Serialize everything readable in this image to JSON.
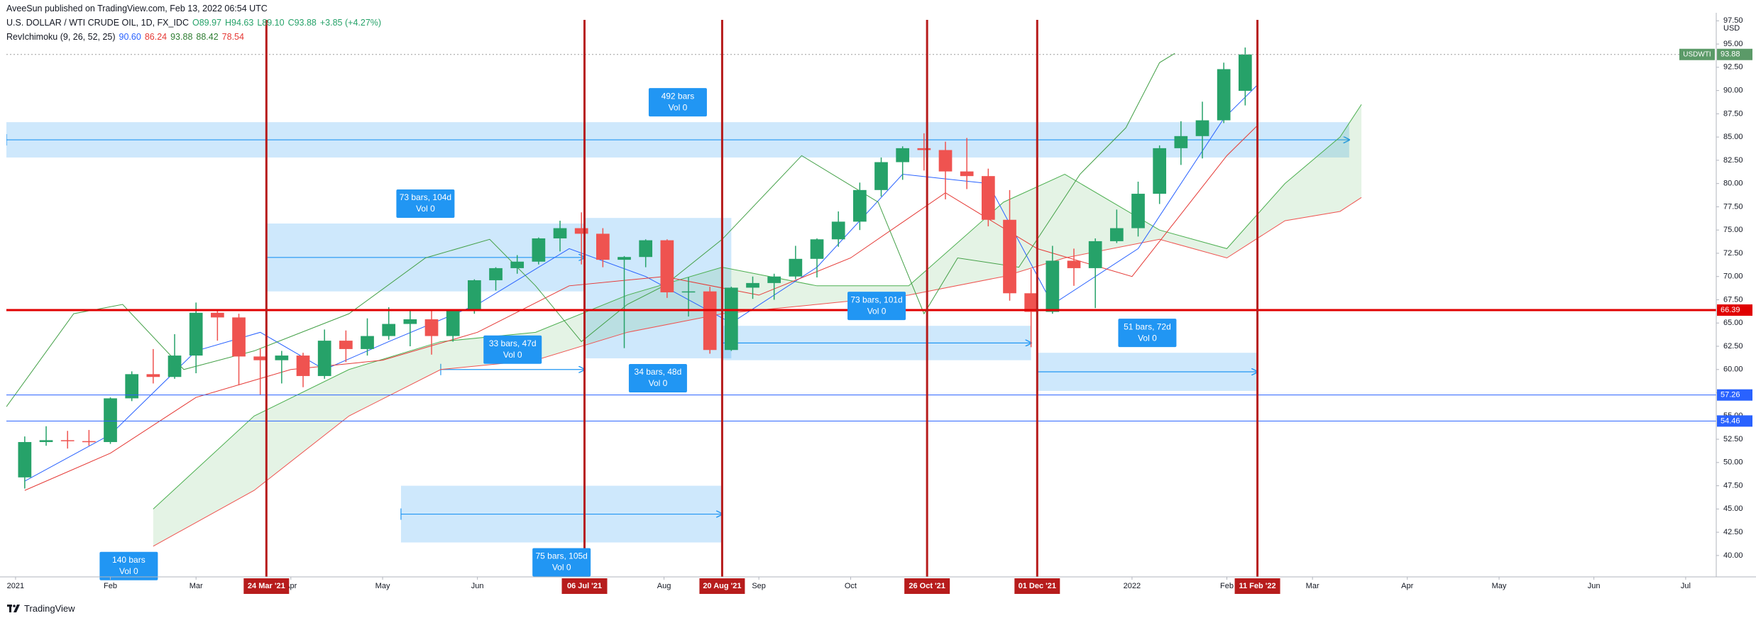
{
  "header": {
    "publisher": "AveeSun published on TradingView.com, Feb 13, 2022 06:54 UTC",
    "symbol": "U.S. DOLLAR / WTI CRUDE OIL, 1D, FX_IDC",
    "ohlc": [
      "O89.97",
      "H94.63",
      "L89.10",
      "C93.88",
      "+3.85 (+4.27%)"
    ],
    "indicator": "RevIchimoku (9, 26, 52, 25)",
    "indicator_values": [
      {
        "label": "90.60",
        "color": "#2962ff"
      },
      {
        "label": "86.24",
        "color": "#e53935"
      },
      {
        "label": "93.88",
        "color": "#2e7d32"
      },
      {
        "label": "88.42",
        "color": "#2e7d32"
      },
      {
        "label": "78.54",
        "color": "#e53935"
      }
    ]
  },
  "footer": {
    "brand": "TradingView"
  },
  "chart_data": {
    "type": "candlestick",
    "currency": "USD",
    "up_color": "#26a269",
    "down_color": "#ef5350",
    "xlim": [
      "2020-12-29",
      "2022-07-11"
    ],
    "ylim": [
      37.7,
      97.6
    ],
    "grid": false,
    "yticks": [
      {
        "value": 40,
        "label": "40.00"
      },
      {
        "value": 42.5,
        "label": "42.50"
      },
      {
        "value": 45,
        "label": "45.00"
      },
      {
        "value": 47.5,
        "label": "47.50"
      },
      {
        "value": 50,
        "label": "50.00"
      },
      {
        "value": 52.5,
        "label": "52.50"
      },
      {
        "value": 55,
        "label": "55.00"
      },
      {
        "value": 57.5,
        "label": "57.50"
      },
      {
        "value": 60,
        "label": "60.00"
      },
      {
        "value": 62.5,
        "label": "62.50"
      },
      {
        "value": 65,
        "label": "65.00"
      },
      {
        "value": 67.5,
        "label": "67.50"
      },
      {
        "value": 70,
        "label": "70.00"
      },
      {
        "value": 72.5,
        "label": "72.50"
      },
      {
        "value": 75,
        "label": "75.00"
      },
      {
        "value": 77.5,
        "label": "77.50"
      },
      {
        "value": 80,
        "label": "80.00"
      },
      {
        "value": 82.5,
        "label": "82.50"
      },
      {
        "value": 85,
        "label": "85.00"
      },
      {
        "value": 87.5,
        "label": "87.50"
      },
      {
        "value": 90,
        "label": "90.00"
      },
      {
        "value": 92.5,
        "label": "92.50"
      },
      {
        "value": 95,
        "label": "95.00"
      },
      {
        "value": 97.5,
        "label": "97.50"
      }
    ],
    "xticks": [
      {
        "value": "2021-01-01",
        "label": "2021"
      },
      {
        "value": "2021-02-01",
        "label": "Feb"
      },
      {
        "value": "2021-03-01",
        "label": "Mar"
      },
      {
        "value": "2021-04-01",
        "label": "Apr"
      },
      {
        "value": "2021-05-01",
        "label": "May"
      },
      {
        "value": "2021-06-01",
        "label": "Jun"
      },
      {
        "value": "2021-08-01",
        "label": "Aug"
      },
      {
        "value": "2021-09-01",
        "label": "Sep"
      },
      {
        "value": "2021-10-01",
        "label": "Oct"
      },
      {
        "value": "2022-01-01",
        "label": "2022"
      },
      {
        "value": "2022-02-01",
        "label": "Feb"
      },
      {
        "value": "2022-03-01",
        "label": "Mar"
      },
      {
        "value": "2022-04-01",
        "label": "Apr"
      },
      {
        "value": "2022-05-01",
        "label": "May"
      },
      {
        "value": "2022-06-01",
        "label": "Jun"
      },
      {
        "value": "2022-07-01",
        "label": "Jul"
      }
    ],
    "x": [
      "2021-01-04",
      "2021-01-11",
      "2021-01-18",
      "2021-01-25",
      "2021-02-01",
      "2021-02-08",
      "2021-02-15",
      "2021-02-22",
      "2021-03-01",
      "2021-03-08",
      "2021-03-15",
      "2021-03-22",
      "2021-03-29",
      "2021-04-05",
      "2021-04-12",
      "2021-04-19",
      "2021-04-26",
      "2021-05-03",
      "2021-05-10",
      "2021-05-17",
      "2021-05-24",
      "2021-05-31",
      "2021-06-07",
      "2021-06-14",
      "2021-06-21",
      "2021-06-28",
      "2021-07-05",
      "2021-07-12",
      "2021-07-19",
      "2021-07-26",
      "2021-08-02",
      "2021-08-09",
      "2021-08-16",
      "2021-08-23",
      "2021-08-30",
      "2021-09-06",
      "2021-09-13",
      "2021-09-20",
      "2021-09-27",
      "2021-10-04",
      "2021-10-11",
      "2021-10-18",
      "2021-10-25",
      "2021-11-01",
      "2021-11-08",
      "2021-11-15",
      "2021-11-22",
      "2021-11-29",
      "2021-12-06",
      "2021-12-13",
      "2021-12-20",
      "2021-12-27",
      "2022-01-03",
      "2022-01-10",
      "2022-01-17",
      "2022-01-24",
      "2022-01-31",
      "2022-02-07"
    ],
    "open": [
      48.4,
      52.2,
      52.4,
      52.3,
      52.2,
      56.9,
      59.5,
      59.2,
      61.5,
      66.1,
      65.6,
      61.4,
      61.0,
      61.5,
      59.3,
      63.1,
      62.2,
      63.6,
      64.9,
      65.4,
      63.6,
      66.3,
      69.6,
      70.9,
      71.6,
      74.1,
      75.2,
      74.6,
      71.8,
      72.1,
      73.9,
      68.3,
      68.4,
      62.1,
      68.8,
      69.3,
      70.0,
      71.9,
      74.0,
      75.9,
      79.3,
      82.3,
      83.8,
      83.6,
      81.3,
      80.8,
      76.1,
      68.2,
      66.2,
      71.7,
      70.9,
      73.8,
      75.2,
      78.9,
      83.8,
      85.1,
      86.8,
      89.97
    ],
    "high": [
      52.8,
      53.9,
      53.4,
      53.5,
      57.0,
      59.8,
      62.2,
      63.8,
      67.2,
      66.4,
      66.0,
      62.3,
      62.0,
      61.8,
      64.3,
      64.2,
      65.5,
      66.7,
      66.4,
      66.5,
      66.5,
      69.7,
      71.0,
      72.3,
      74.2,
      76.0,
      76.9,
      75.2,
      72.2,
      74.0,
      74.0,
      69.9,
      68.9,
      68.9,
      70.0,
      70.3,
      73.3,
      74.1,
      77.0,
      80.1,
      82.8,
      84.0,
      85.4,
      84.5,
      84.9,
      81.6,
      79.3,
      70.8,
      73.3,
      73.0,
      74.1,
      77.2,
      80.2,
      84.1,
      86.7,
      88.8,
      93.0,
      94.63
    ],
    "low": [
      47.2,
      51.8,
      51.5,
      51.8,
      52.0,
      56.6,
      58.5,
      59.0,
      59.6,
      63.1,
      58.3,
      57.3,
      58.5,
      58.1,
      59.0,
      60.8,
      61.5,
      63.2,
      62.5,
      61.6,
      63.0,
      66.0,
      68.5,
      70.3,
      71.3,
      72.7,
      71.3,
      71.0,
      62.3,
      71.0,
      67.7,
      65.7,
      61.7,
      62.0,
      67.6,
      67.5,
      69.7,
      69.9,
      73.2,
      75.0,
      78.6,
      80.4,
      81.4,
      78.3,
      79.4,
      75.4,
      67.4,
      62.4,
      66.0,
      69.0,
      66.6,
      73.6,
      74.3,
      77.8,
      82.0,
      82.7,
      86.5,
      88.4
    ],
    "close": [
      52.2,
      52.4,
      52.3,
      52.2,
      56.9,
      59.5,
      59.2,
      61.5,
      66.1,
      65.6,
      61.4,
      61.0,
      61.5,
      59.3,
      63.1,
      62.2,
      63.6,
      64.9,
      65.4,
      63.6,
      66.3,
      69.6,
      70.9,
      71.6,
      74.1,
      75.2,
      74.6,
      71.8,
      72.1,
      73.9,
      68.3,
      68.4,
      62.1,
      68.8,
      69.3,
      70.0,
      71.9,
      74.0,
      75.9,
      79.3,
      82.3,
      83.8,
      83.6,
      81.3,
      80.8,
      76.1,
      68.2,
      66.2,
      71.7,
      70.9,
      73.8,
      75.2,
      78.9,
      83.8,
      85.1,
      86.8,
      92.3,
      93.88
    ],
    "lines": [
      {
        "color": "#2962ff",
        "x": [
          "2021-01-04",
          "2021-02-01",
          "2021-03-01",
          "2021-03-22",
          "2021-04-12",
          "2021-05-03",
          "2021-06-01",
          "2021-07-01",
          "2021-07-26",
          "2021-08-23",
          "2021-09-20",
          "2021-10-18",
          "2021-11-15",
          "2021-12-06",
          "2022-01-03",
          "2022-01-31",
          "2022-02-11"
        ],
        "values": [
          48,
          53,
          62,
          64,
          60,
          63,
          67,
          73,
          70,
          65,
          71,
          81,
          80,
          67,
          73,
          87,
          90.6
        ]
      },
      {
        "color": "#e53935",
        "x": [
          "2021-01-04",
          "2021-02-01",
          "2021-03-01",
          "2021-04-01",
          "2021-05-01",
          "2021-06-01",
          "2021-07-01",
          "2021-08-01",
          "2021-09-01",
          "2021-10-01",
          "2021-11-01",
          "2021-12-01",
          "2022-01-01",
          "2022-02-01",
          "2022-02-11"
        ],
        "values": [
          47,
          51,
          57,
          60,
          61,
          64,
          69,
          70,
          68,
          72,
          79,
          73,
          70,
          83,
          86.24
        ]
      },
      {
        "color": "#43a047",
        "x": [
          "2020-12-29",
          "2021-01-20",
          "2021-02-05",
          "2021-02-25",
          "2021-03-20",
          "2021-04-20",
          "2021-05-15",
          "2021-06-05",
          "2021-06-20",
          "2021-07-05",
          "2021-07-20",
          "2021-08-01",
          "2021-08-20",
          "2021-09-15",
          "2021-10-10",
          "2021-10-25",
          "2021-11-05",
          "2021-11-25",
          "2021-12-15",
          "2021-12-30",
          "2022-01-10",
          "2022-01-15"
        ],
        "values": [
          56,
          66,
          67,
          60,
          62,
          66,
          72,
          74,
          69,
          63,
          67,
          69,
          74,
          83,
          78,
          66,
          72,
          71,
          81,
          86,
          93,
          94
        ]
      }
    ],
    "cloud": {
      "color": "#4caf50",
      "x": [
        "2021-02-15",
        "2021-03-20",
        "2021-04-20",
        "2021-05-20",
        "2021-06-20",
        "2021-07-20",
        "2021-08-20",
        "2021-09-20",
        "2021-10-20",
        "2021-11-20",
        "2021-12-10",
        "2022-01-10",
        "2022-02-01",
        "2022-02-20",
        "2022-03-10",
        "2022-03-17"
      ],
      "span_a": [
        45,
        55,
        60,
        63,
        64,
        68,
        71,
        69,
        69,
        78,
        81,
        75,
        73,
        80,
        85,
        88.5
      ],
      "span_b": [
        41,
        47,
        55,
        60,
        61,
        64,
        66,
        67,
        68,
        70,
        72,
        74,
        72,
        76,
        77,
        78.5
      ],
      "span_a_color": "#4caf50",
      "span_b_color": "#ef5350"
    },
    "hlines": [
      {
        "value": 93.88,
        "color": "#5b9a68",
        "line_color": "#9e9e9e",
        "style": "dotted",
        "width": 1,
        "tag": "USDWTI"
      },
      {
        "value": 66.39,
        "color": "#e00000",
        "line_color": "#e00000",
        "style": "solid",
        "width": 3
      },
      {
        "value": 57.26,
        "color": "#2962ff",
        "line_color": "#2962ff",
        "style": "solid",
        "width": 1
      },
      {
        "value": 54.46,
        "color": "#2962ff",
        "line_color": "#2962ff",
        "style": "solid",
        "width": 1
      }
    ],
    "marker_color": "#b71c1c",
    "markers": [
      {
        "date": "2021-03-24",
        "label": "24 Mar '21"
      },
      {
        "date": "2021-07-06",
        "label": "06 Jul '21"
      },
      {
        "date": "2021-08-20",
        "label": "20 Aug '21"
      },
      {
        "date": "2021-10-26",
        "label": "26 Oct '21"
      },
      {
        "date": "2021-12-01",
        "label": "01 Dec '21"
      },
      {
        "date": "2022-02-11",
        "label": "11 Feb '22"
      }
    ],
    "range_color": "#2196f3",
    "ranges": [
      {
        "from": "2020-12-29",
        "to": "2022-03-13",
        "top": 86.6,
        "bottom": 82.8,
        "label": "492 bars",
        "volume": "Vol 0",
        "label_side": "above",
        "arrow": true
      },
      {
        "from": "2021-03-24",
        "to": "2021-07-06",
        "top": 75.7,
        "bottom": 68.4,
        "label": "73 bars, 104d",
        "volume": "Vol 0",
        "label_side": "above",
        "arrow": true
      },
      {
        "from": "2021-05-20",
        "to": "2021-07-06",
        "top": 60.0,
        "bottom": 60.0,
        "label": "33 bars, 47d",
        "volume": "Vol 0",
        "label_side": "above",
        "arrow": true
      },
      {
        "from": "2021-07-06",
        "to": "2021-08-23",
        "top": 76.3,
        "bottom": 61.2,
        "label": "34 bars, 48d",
        "volume": "Vol 0",
        "label_side": "below",
        "arrow": false
      },
      {
        "from": "2021-05-07",
        "to": "2021-08-20",
        "top": 47.5,
        "bottom": 41.4,
        "label": "75 bars, 105d",
        "volume": "Vol 0",
        "label_side": "below",
        "arrow": true
      },
      {
        "from": "2021-08-20",
        "to": "2021-11-29",
        "top": 64.7,
        "bottom": 61.0,
        "label": "73 bars, 101d",
        "volume": "Vol 0",
        "label_side": "above",
        "arrow": true
      },
      {
        "from": "2021-12-01",
        "to": "2022-02-11",
        "top": 61.8,
        "bottom": 57.7,
        "label": "51 bars, 72d",
        "volume": "Vol 0",
        "label_side": "above",
        "arrow": true
      },
      {
        "from": "2021-01-20",
        "to": "2021-02-25",
        "top": 41.0,
        "bottom": 41.0,
        "label": "140 bars",
        "volume": "Vol 0",
        "label_side": "below",
        "arrow": false
      }
    ]
  }
}
